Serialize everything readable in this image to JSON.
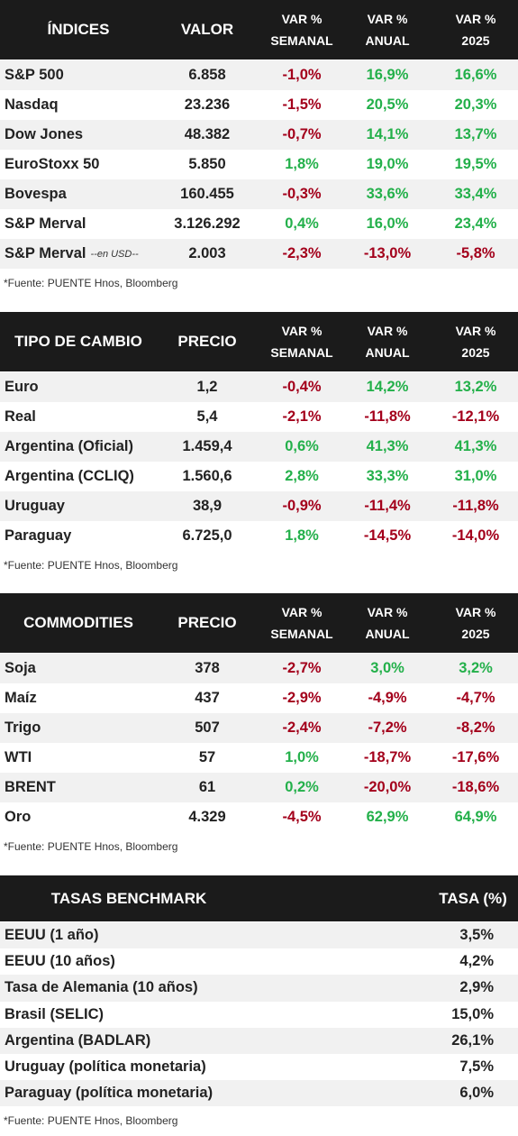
{
  "tables": [
    {
      "headers": [
        [
          "ÍNDICES"
        ],
        [
          "VALOR"
        ],
        [
          "VAR %",
          "SEMANAL"
        ],
        [
          "VAR %",
          "ANUAL"
        ],
        [
          "VAR %",
          "2025"
        ]
      ],
      "rows": [
        [
          "S&P 500",
          "6.858",
          "-1,0%",
          "16,9%",
          "16,6%"
        ],
        [
          "Nasdaq",
          "23.236",
          "-1,5%",
          "20,5%",
          "20,3%"
        ],
        [
          "Dow Jones",
          "48.382",
          "-0,7%",
          "14,1%",
          "13,7%"
        ],
        [
          "EuroStoxx 50",
          "5.850",
          "1,8%",
          "19,0%",
          "19,5%"
        ],
        [
          "Bovespa",
          "160.455",
          "-0,3%",
          "33,6%",
          "33,4%"
        ],
        [
          "S&P Merval",
          "3.126.292",
          "0,4%",
          "16,0%",
          "23,4%"
        ],
        [
          {
            "text": "S&P Merval",
            "note": "--en USD--"
          },
          "2.003",
          "-2,3%",
          "-13,0%",
          "-5,8%"
        ]
      ],
      "source": "*Fuente: PUENTE Hnos, Bloomberg"
    },
    {
      "headers": [
        [
          "TIPO DE CAMBIO"
        ],
        [
          "PRECIO"
        ],
        [
          "VAR %",
          "SEMANAL"
        ],
        [
          "VAR %",
          "ANUAL"
        ],
        [
          "VAR %",
          "2025"
        ]
      ],
      "rows": [
        [
          "Euro",
          "1,2",
          "-0,4%",
          "14,2%",
          "13,2%"
        ],
        [
          "Real",
          "5,4",
          "-2,1%",
          "-11,8%",
          "-12,1%"
        ],
        [
          "Argentina (Oficial)",
          "1.459,4",
          "0,6%",
          "41,3%",
          "41,3%"
        ],
        [
          "Argentina (CCLIQ)",
          "1.560,6",
          "2,8%",
          "33,3%",
          "31,0%"
        ],
        [
          "Uruguay",
          "38,9",
          "-0,9%",
          "-11,4%",
          "-11,8%"
        ],
        [
          "Paraguay",
          "6.725,0",
          "1,8%",
          "-14,5%",
          "-14,0%"
        ]
      ],
      "source": "*Fuente: PUENTE Hnos, Bloomberg"
    },
    {
      "headers": [
        [
          "COMMODITIES"
        ],
        [
          "PRECIO"
        ],
        [
          "VAR %",
          "SEMANAL"
        ],
        [
          "VAR %",
          "ANUAL"
        ],
        [
          "VAR %",
          "2025"
        ]
      ],
      "rows": [
        [
          "Soja",
          "378",
          "-2,7%",
          "3,0%",
          "3,2%"
        ],
        [
          "Maíz",
          "437",
          "-2,9%",
          "-4,9%",
          "-4,7%"
        ],
        [
          "Trigo",
          "507",
          "-2,4%",
          "-7,2%",
          "-8,2%"
        ],
        [
          "WTI",
          "57",
          "1,0%",
          "-18,7%",
          "-17,6%"
        ],
        [
          "BRENT",
          "61",
          "0,2%",
          "-20,0%",
          "-18,6%"
        ],
        [
          "Oro",
          "4.329",
          "-4,5%",
          "62,9%",
          "64,9%"
        ]
      ],
      "source": "*Fuente: PUENTE Hnos, Bloomberg"
    },
    {
      "headers": [
        [
          "TASAS BENCHMARK"
        ],
        [
          "TASA (%)"
        ]
      ],
      "rows": [
        [
          "EEUU (1 año)",
          "3,5%"
        ],
        [
          "EEUU (10 años)",
          "4,2%"
        ],
        [
          "Tasa de Alemania (10 años)",
          "2,9%"
        ],
        [
          "Brasil (SELIC)",
          "15,0%"
        ],
        [
          "Argentina (BADLAR)",
          "26,1%"
        ],
        [
          "Uruguay (política monetaria)",
          "7,5%"
        ],
        [
          "Paraguay (política monetaria)",
          "6,0%"
        ]
      ],
      "source": "*Fuente: PUENTE Hnos, Bloomberg"
    }
  ]
}
